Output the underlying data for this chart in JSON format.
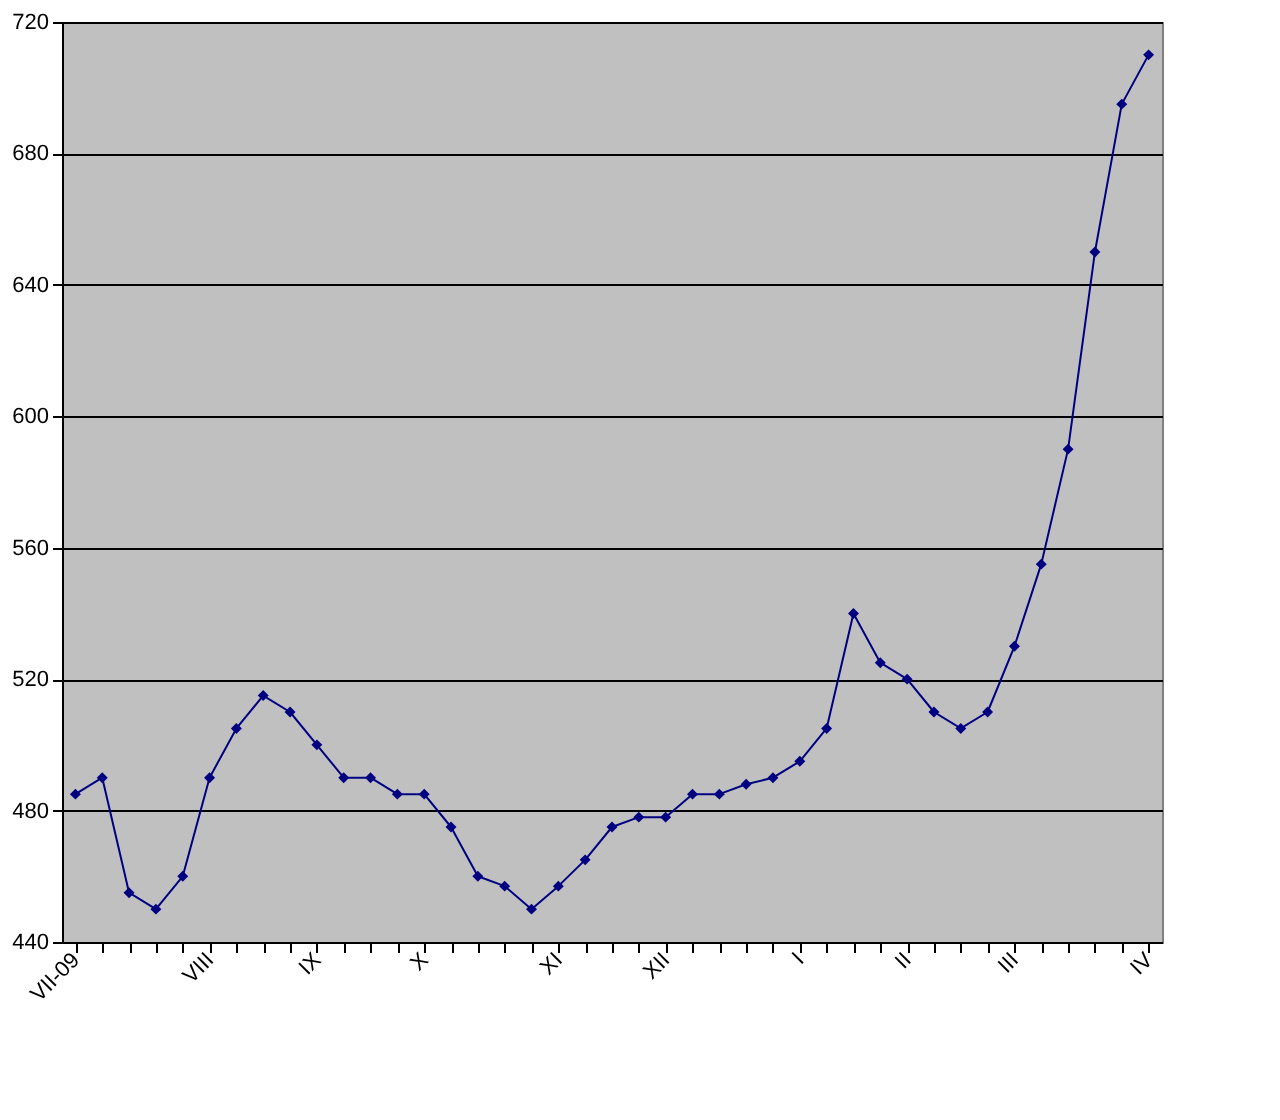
{
  "chart_data": {
    "type": "line",
    "categories": [
      "VII-09",
      null,
      null,
      null,
      null,
      "VIII",
      null,
      null,
      null,
      "IX",
      null,
      null,
      null,
      "X",
      null,
      null,
      null,
      null,
      "XI",
      null,
      null,
      null,
      "XII",
      null,
      null,
      null,
      null,
      "I",
      null,
      null,
      null,
      "II",
      null,
      null,
      null,
      "III",
      null,
      null,
      null,
      null,
      "IV"
    ],
    "series": [
      {
        "color": "#000080",
        "values": [
          485,
          490,
          455,
          450,
          460,
          490,
          505,
          515,
          510,
          500,
          490,
          490,
          485,
          485,
          475,
          460,
          457,
          450,
          457,
          465,
          475,
          478,
          478,
          485,
          485,
          488,
          490,
          495,
          505,
          540,
          525,
          520,
          510,
          505,
          510,
          530,
          555,
          590,
          650,
          695,
          710
        ]
      }
    ],
    "ylim": [
      440,
      720
    ],
    "yticks": [
      440,
      480,
      520,
      560,
      600,
      640,
      680,
      720
    ],
    "grid": "y",
    "marker": "diamond",
    "line_style": "solid"
  }
}
